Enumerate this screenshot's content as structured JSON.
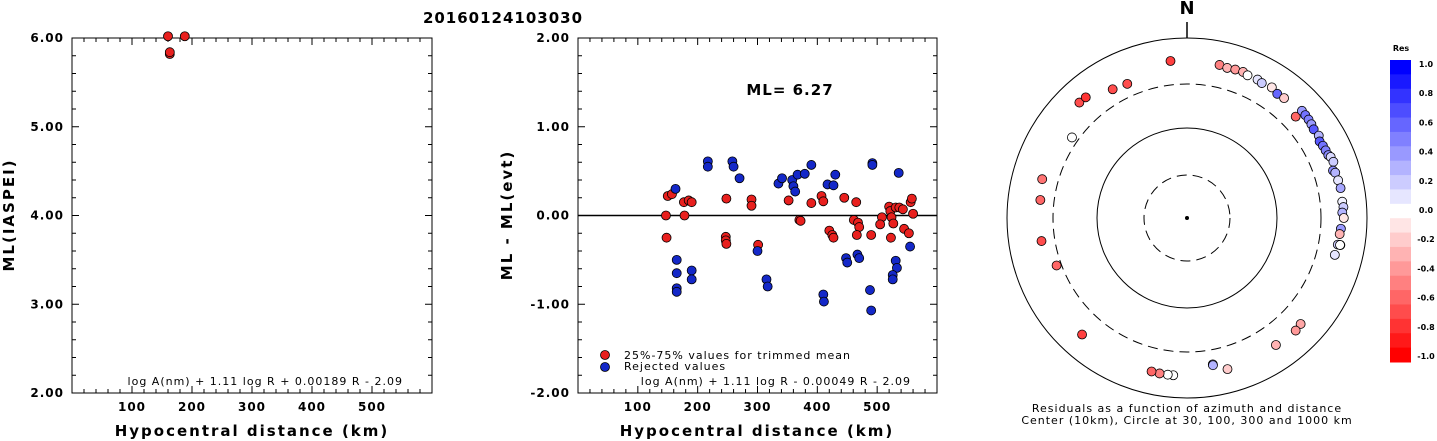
{
  "chart_data": [
    {
      "type": "scatter",
      "title": "20160124103030",
      "xlabel": "Hypocentral distance (km)",
      "ylabel": "ML(IASPEI)",
      "xlim": [
        0,
        600
      ],
      "ylim": [
        2.0,
        6.0
      ],
      "xticks": [
        100,
        200,
        300,
        400,
        500
      ],
      "yticks": [
        "2.00",
        "3.00",
        "4.00",
        "5.00",
        "6.00"
      ],
      "formula": "log A(nm) + 1.11 log R + 0.00189 R - 2.09",
      "series": [
        {
          "color": "#e8201e",
          "points": [
            [
              160,
              6.02
            ],
            [
              188,
              6.02
            ],
            [
              163,
              5.82
            ],
            [
              163,
              5.84
            ]
          ]
        }
      ]
    },
    {
      "type": "scatter",
      "xlabel": "Hypocentral distance (km)",
      "ylabel": "ML - ML(evt)",
      "xlim": [
        0,
        600
      ],
      "ylim": [
        -2.0,
        2.0
      ],
      "xticks": [
        100,
        200,
        300,
        400,
        500
      ],
      "yticks": [
        "-2.00",
        "-1.00",
        "0.00",
        "1.00",
        "2.00"
      ],
      "zero_line": 0.0,
      "annotation": "ML= 6.27",
      "formula": "log A(nm) + 1.11 log R - 0.00049 R - 2.09",
      "legend": [
        {
          "label": "25%-75% values for trimmed mean",
          "color": "#e8201e"
        },
        {
          "label": "Rejected values",
          "color": "#1428c8"
        }
      ],
      "series": [
        {
          "name": "25%-75% values for trimmed mean",
          "color": "#e8201e",
          "points": [
            [
              147,
              0.0
            ],
            [
              150,
              0.22
            ],
            [
              148,
              -0.25
            ],
            [
              157,
              0.24
            ],
            [
              177,
              0.15
            ],
            [
              178,
              0.0
            ],
            [
              185,
              0.17
            ],
            [
              190,
              0.15
            ],
            [
              248,
              0.19
            ],
            [
              247,
              -0.24
            ],
            [
              247,
              -0.28
            ],
            [
              248,
              -0.32
            ],
            [
              290,
              0.18
            ],
            [
              290,
              0.11
            ],
            [
              301,
              -0.33
            ],
            [
              352,
              0.17
            ],
            [
              370,
              -0.05
            ],
            [
              372,
              -0.06
            ],
            [
              390,
              0.14
            ],
            [
              407,
              0.22
            ],
            [
              410,
              0.16
            ],
            [
              420,
              -0.17
            ],
            [
              425,
              -0.22
            ],
            [
              427,
              -0.25
            ],
            [
              445,
              0.2
            ],
            [
              461,
              -0.05
            ],
            [
              465,
              0.15
            ],
            [
              468,
              -0.08
            ],
            [
              470,
              -0.13
            ],
            [
              490,
              -0.22
            ],
            [
              508,
              -0.02
            ],
            [
              520,
              0.1
            ],
            [
              522,
              0.05
            ],
            [
              524,
              -0.02
            ],
            [
              527,
              -0.09
            ],
            [
              531,
              0.09
            ],
            [
              537,
              0.09
            ],
            [
              543,
              0.07
            ],
            [
              545,
              -0.15
            ],
            [
              553,
              -0.2
            ],
            [
              556,
              0.15
            ],
            [
              558,
              0.19
            ],
            [
              560,
              0.02
            ],
            [
              466,
              -0.22
            ],
            [
              523,
              -0.25
            ],
            [
              505,
              -0.1
            ]
          ]
        },
        {
          "name": "Rejected values",
          "color": "#1428c8",
          "points": [
            [
              163,
              0.3
            ],
            [
              165,
              -0.5
            ],
            [
              165,
              -0.65
            ],
            [
              165,
              -0.82
            ],
            [
              165,
              -0.86
            ],
            [
              190,
              -0.62
            ],
            [
              190,
              -0.72
            ],
            [
              217,
              0.61
            ],
            [
              217,
              0.55
            ],
            [
              258,
              0.61
            ],
            [
              260,
              0.55
            ],
            [
              270,
              0.42
            ],
            [
              300,
              -0.4
            ],
            [
              315,
              -0.72
            ],
            [
              317,
              -0.8
            ],
            [
              335,
              0.36
            ],
            [
              341,
              0.42
            ],
            [
              358,
              0.4
            ],
            [
              360,
              0.33
            ],
            [
              363,
              0.27
            ],
            [
              367,
              0.46
            ],
            [
              379,
              0.47
            ],
            [
              390,
              0.57
            ],
            [
              410,
              -0.89
            ],
            [
              411,
              -0.97
            ],
            [
              417,
              0.35
            ],
            [
              427,
              0.34
            ],
            [
              430,
              0.46
            ],
            [
              448,
              -0.48
            ],
            [
              450,
              -0.53
            ],
            [
              467,
              -0.44
            ],
            [
              470,
              -0.48
            ],
            [
              488,
              -0.84
            ],
            [
              490,
              -1.07
            ],
            [
              492,
              0.59
            ],
            [
              492,
              0.57
            ],
            [
              531,
              -0.51
            ],
            [
              533,
              -0.59
            ],
            [
              536,
              0.48
            ],
            [
              526,
              -0.67
            ],
            [
              526,
              -0.72
            ],
            [
              555,
              -0.35
            ]
          ]
        }
      ]
    },
    {
      "type": "scatter",
      "subtype": "polar",
      "north_label": "N",
      "caption_line1": "Residuals as a function of azimuth and distance",
      "caption_line2": "Center (10km), Circle at 30, 100, 300 and 1000 km",
      "rings_km": [
        10,
        30,
        100,
        300,
        1000
      ],
      "colorbar": {
        "title": "Res",
        "ticks": [
          "1.0",
          "0.8",
          "0.6",
          "0.4",
          "0.2",
          "0.0",
          "-0.2",
          "-0.4",
          "-0.6",
          "-0.8",
          "-1.0"
        ],
        "max_color": "#0000ff",
        "zero_color": "#ffffff",
        "min_color": "#ff0000"
      },
      "points_note": "azimuth in degrees clockwise from north, distance in km, residual",
      "points": [
        [
          317,
          560,
          -0.7
        ],
        [
          320,
          555,
          -0.8
        ],
        [
          330,
          440,
          -0.7
        ],
        [
          336,
          420,
          -0.7
        ],
        [
          354,
          560,
          -0.75
        ],
        [
          12,
          540,
          -0.5
        ],
        [
          15,
          525,
          -0.3
        ],
        [
          18,
          535,
          -0.4
        ],
        [
          21,
          540,
          -0.3
        ],
        [
          23,
          520,
          0.0
        ],
        [
          27,
          525,
          0.1
        ],
        [
          29,
          510,
          0.2
        ],
        [
          33,
          530,
          -0.1
        ],
        [
          36,
          500,
          0.6
        ],
        [
          39,
          510,
          -0.2
        ],
        [
          47,
          440,
          -0.6
        ],
        [
          47,
          550,
          0.4
        ],
        [
          49,
          545,
          0.55
        ],
        [
          51,
          540,
          0.5
        ],
        [
          53,
          530,
          0.4
        ],
        [
          55,
          515,
          0.65
        ],
        [
          58,
          525,
          0.3
        ],
        [
          60,
          495,
          0.65
        ],
        [
          62,
          505,
          0.55
        ],
        [
          64,
          510,
          0.5
        ],
        [
          66,
          515,
          0.45
        ],
        [
          67,
          535,
          0.15
        ],
        [
          69,
          545,
          0.2
        ],
        [
          72,
          500,
          0.45
        ],
        [
          73,
          520,
          0.3
        ],
        [
          76,
          530,
          0.1
        ],
        [
          79,
          540,
          0.35
        ],
        [
          84,
          535,
          0.05
        ],
        [
          86,
          545,
          0.2
        ],
        [
          88,
          525,
          0.3
        ],
        [
          90,
          545,
          -0.1
        ],
        [
          94,
          510,
          0.4
        ],
        [
          96,
          500,
          -0.3
        ],
        [
          100,
          495,
          0.2
        ],
        [
          100,
          530,
          -0.1
        ],
        [
          104,
          485,
          0.1
        ],
        [
          100,
          525,
          0.0
        ],
        [
          133,
          525,
          -0.35
        ],
        [
          136,
          540,
          -0.4
        ],
        [
          145,
          520,
          -0.3
        ],
        [
          165,
          540,
          -0.2
        ],
        [
          170,
          440,
          0.3
        ],
        [
          170,
          450,
          0.3
        ],
        [
          185,
          560,
          0.0
        ],
        [
          187,
          560,
          0.0
        ],
        [
          190,
          560,
          -0.5
        ],
        [
          193,
          555,
          -0.6
        ],
        [
          222,
          545,
          -0.75
        ],
        [
          261,
          425,
          -0.7
        ],
        [
          250,
          340,
          -0.6
        ],
        [
          277,
          430,
          -0.6
        ],
        [
          285,
          455,
          -0.55
        ],
        [
          305,
          355,
          0.0
        ]
      ]
    }
  ]
}
